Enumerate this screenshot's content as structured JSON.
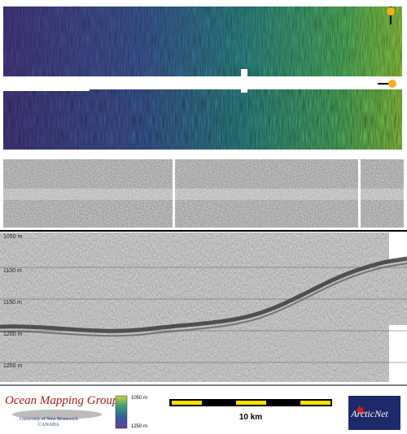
{
  "depth_scale": {
    "labels": [
      "1050 m",
      "1100 m",
      "1150 m",
      "1200 m",
      "1250 m"
    ]
  },
  "logo": {
    "title": "Ocean Mapping Group",
    "university": "University of New Brunswick",
    "country": "CANADA"
  },
  "colorbar": {
    "top": "1050 m",
    "bottom": "1250 m"
  },
  "scale_bar": {
    "label": "10 km"
  },
  "partner": {
    "name": "ArcticNet"
  }
}
